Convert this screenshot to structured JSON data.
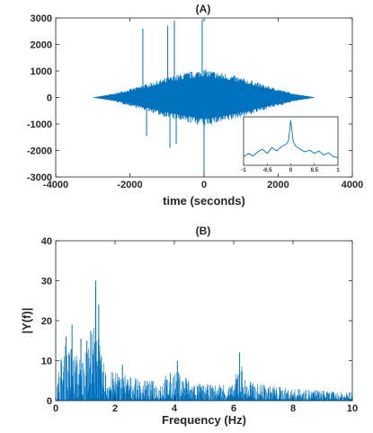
{
  "colors": {
    "series": "#0072BD",
    "axis": "#262626",
    "background": "#ffffff"
  },
  "chart_data": [
    {
      "type": "line",
      "title": "(A)",
      "xlabel": "time (seconds)",
      "ylabel": "",
      "xlim": [
        -4000,
        4000
      ],
      "ylim": [
        -3000,
        3000
      ],
      "xticks": [
        -4000,
        -2000,
        0,
        2000,
        4000
      ],
      "yticks": [
        -3000,
        -2000,
        -1000,
        0,
        1000,
        2000,
        3000
      ],
      "xtick_labels": [
        "-4000",
        "-2000",
        "0",
        "2000",
        "4000"
      ],
      "ytick_labels": [
        "-3000",
        "-2000",
        "-1000",
        "0",
        "1000",
        "2000",
        "3000"
      ],
      "grid": false,
      "series": [
        {
          "x": [
            -3000,
            -2400,
            -1800,
            -1200,
            -600,
            0,
            600,
            1200,
            1800,
            2400,
            3000
          ],
          "y_upper": [
            0,
            120,
            300,
            500,
            680,
            800,
            680,
            500,
            300,
            120,
            0
          ],
          "y_lower": [
            0,
            -120,
            -300,
            -500,
            -680,
            -800,
            -680,
            -500,
            -300,
            -120,
            0
          ],
          "spikes": [
            {
              "x": -1650,
              "y": 2600
            },
            {
              "x": -1550,
              "y": -1450
            },
            {
              "x": -980,
              "y": 2700
            },
            {
              "x": -920,
              "y": -1900
            },
            {
              "x": -800,
              "y": 2900
            },
            {
              "x": -750,
              "y": -1750
            },
            {
              "x": -50,
              "y": 2950
            },
            {
              "x": 0,
              "y": -3000
            }
          ]
        }
      ],
      "inset": {
        "xlim": [
          -1,
          1
        ],
        "xticks": [
          -1,
          -0.5,
          0,
          0.5,
          1
        ],
        "xtick_labels": [
          "-1",
          "-0.5",
          "0",
          "0.5",
          "1"
        ],
        "x": [
          -1,
          -0.9,
          -0.8,
          -0.7,
          -0.6,
          -0.5,
          -0.4,
          -0.3,
          -0.2,
          -0.1,
          -0.05,
          0,
          0.05,
          0.1,
          0.2,
          0.3,
          0.4,
          0.5,
          0.6,
          0.7,
          0.8,
          0.9,
          1
        ],
        "y": [
          0.12,
          0.2,
          0.14,
          0.24,
          0.3,
          0.2,
          0.34,
          0.26,
          0.36,
          0.42,
          0.5,
          1.0,
          0.5,
          0.38,
          0.3,
          0.24,
          0.28,
          0.2,
          0.26,
          0.16,
          0.22,
          0.12,
          0.1
        ]
      }
    },
    {
      "type": "line",
      "title": "(B)",
      "xlabel": "Frequency (Hz)",
      "ylabel": "|Y(f)|",
      "xlim": [
        0,
        10
      ],
      "ylim": [
        0,
        40
      ],
      "xticks": [
        0,
        2,
        4,
        6,
        8,
        10
      ],
      "yticks": [
        0,
        10,
        20,
        30,
        40
      ],
      "xtick_labels": [
        "0",
        "2",
        "4",
        "6",
        "8",
        "10"
      ],
      "ytick_labels": [
        "0",
        "10",
        "20",
        "30",
        "40"
      ],
      "grid": false,
      "series": [
        {
          "x": [
            0,
            0.1,
            0.3,
            0.5,
            0.7,
            0.9,
            1.1,
            1.3,
            1.35,
            1.4,
            1.5,
            1.7,
            2.0,
            2.5,
            3.0,
            3.5,
            4.0,
            4.5,
            5.0,
            5.5,
            6.0,
            6.2,
            6.4,
            7.0,
            8.0,
            9.0,
            10.0
          ],
          "y": [
            0.5,
            8,
            14,
            13,
            12,
            11,
            13,
            20,
            30,
            24,
            12,
            8,
            7,
            6,
            5,
            5,
            8,
            5,
            4,
            4,
            4,
            12,
            5,
            4,
            3,
            2.5,
            2
          ],
          "peaks": [
            {
              "x": 0.35,
              "y": 16
            },
            {
              "x": 0.55,
              "y": 19
            },
            {
              "x": 0.85,
              "y": 15.5
            },
            {
              "x": 1.05,
              "y": 15
            },
            {
              "x": 1.18,
              "y": 17.5
            },
            {
              "x": 1.35,
              "y": 30
            },
            {
              "x": 1.45,
              "y": 24
            },
            {
              "x": 2.25,
              "y": 9
            },
            {
              "x": 4.1,
              "y": 10
            },
            {
              "x": 6.2,
              "y": 12
            }
          ]
        }
      ]
    }
  ]
}
